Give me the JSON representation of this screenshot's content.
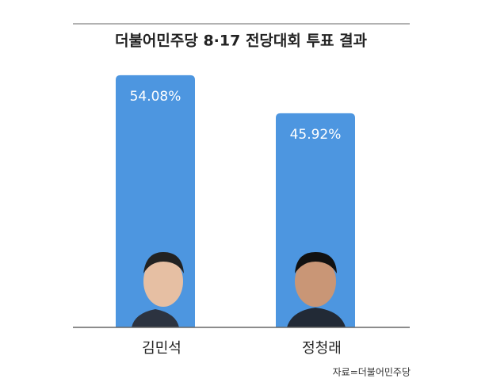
{
  "chart_data": {
    "type": "bar",
    "title": "더불어민주당 8·17 전당대회 투표 결과",
    "categories": [
      "김민석",
      "정청래"
    ],
    "values": [
      54.08,
      45.92
    ],
    "value_labels": [
      "54.08%",
      "45.92%"
    ],
    "color": "#4d96e0",
    "ylim": [
      0,
      60
    ],
    "source": "자료=더불어민주당"
  }
}
